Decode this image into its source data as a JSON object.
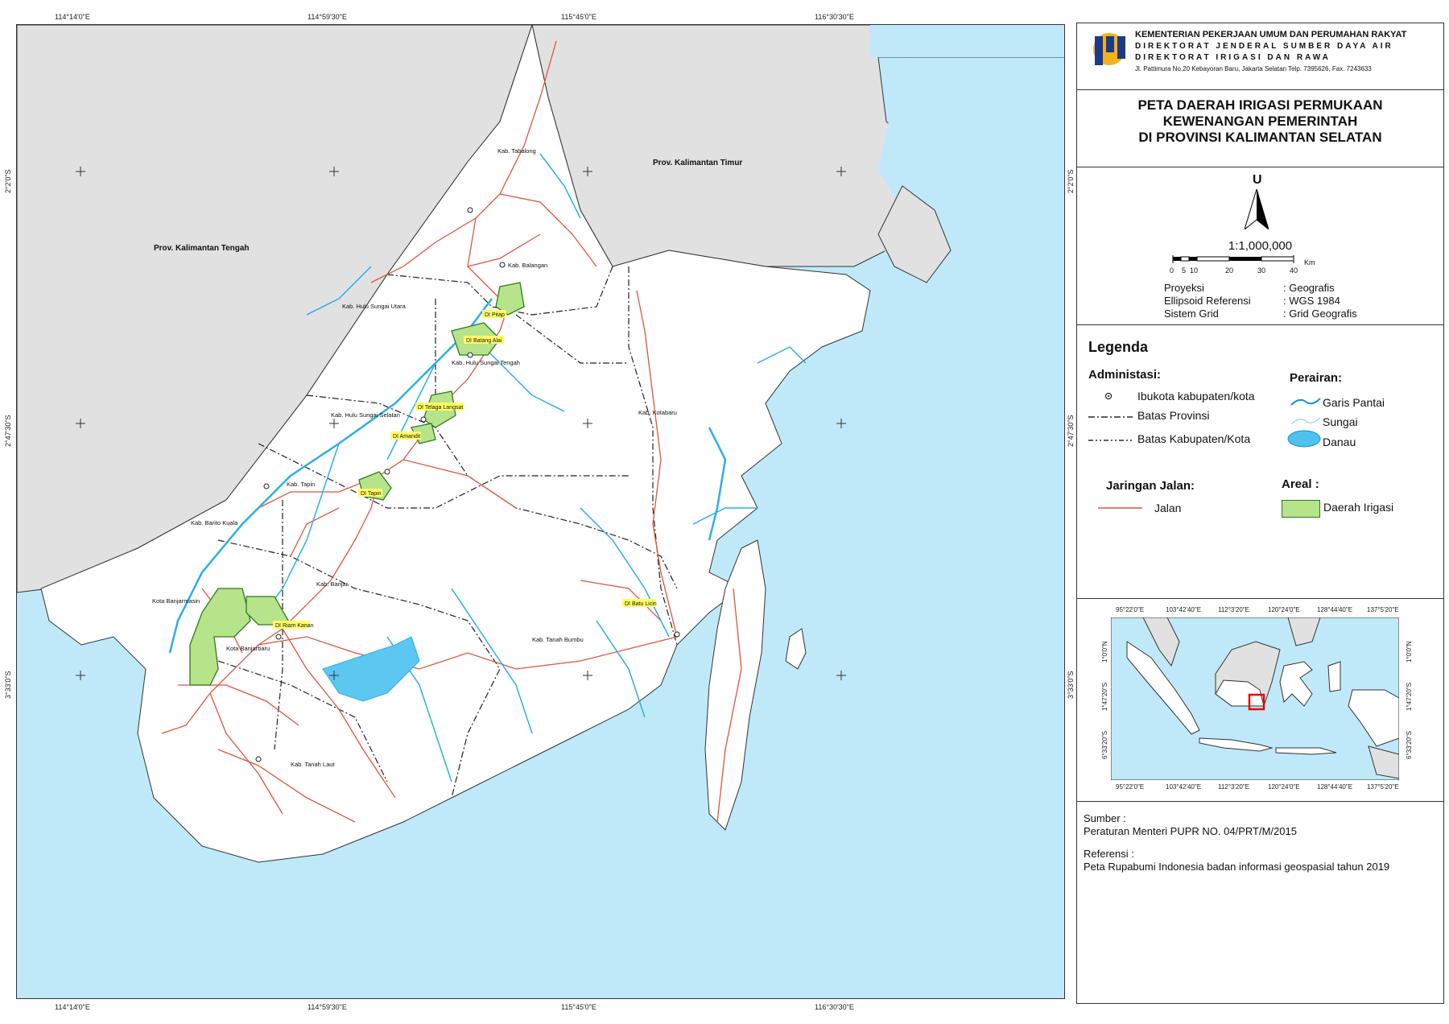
{
  "map": {
    "coords_top": [
      "114°14'0\"E",
      "114°59'30\"E",
      "115°45'0\"E",
      "116°30'30\"E"
    ],
    "coords_bottom": [
      "114°14'0\"E",
      "114°59'30\"E",
      "115°45'0\"E",
      "116°30'30\"E"
    ],
    "coords_left": [
      "2°2'0\"S",
      "2°47'30\"S",
      "3°33'0\"S"
    ],
    "coords_right": [
      "2°2'0\"S",
      "2°47'30\"S",
      "3°33'0\"S"
    ],
    "province_labels": {
      "kaltim": "Prov. Kalimantan Timur",
      "kalteng": "Prov. Kalimantan Tengah"
    },
    "regency_labels": {
      "tabalong": "Kab. Tabalong",
      "balangan": "Kab. Balangan",
      "hsu": "Kab. Hulu Sungai Utara",
      "hst": "Kab. Hulu Sungai Tengah",
      "hss": "Kab. Hulu Sungai Selatan",
      "tapin": "Kab. Tapin",
      "batola": "Kab. Barito Kuala",
      "kotabaru": "Kab. Kotabaru",
      "banjar": "Kab. Banjar",
      "banjarmasin": "Kota Banjarmasin",
      "banjarbaru": "Kota Banjarbaru",
      "tanahbumbu": "Kab. Tanah Bumbu",
      "tanahlaut": "Kab. Tanah Laut"
    },
    "irrigation_labels": {
      "pitap": "DI Pitap",
      "batang_alai": "DI Batang Alai",
      "telaga_langsat": "DI Telaga Langsat",
      "amandit": "DI Amandit",
      "tapin": "DI Tapin",
      "riam_kanan": "DI Riam Kanan",
      "batu_licin": "DI Batu Licin"
    }
  },
  "header": {
    "ministry": "KEMENTERIAN PEKERJAAN UMUM DAN PERUMAHAN RAKYAT",
    "directorate_general": "DIREKTORAT JENDERAL SUMBER DAYA AIR",
    "directorate": "DIREKTORAT IRIGASI DAN RAWA",
    "address": "Jl. Pattimura No.20 Kebayoran Baru, Jakarta Selatan Telp. 7395626, Fax. 7243633"
  },
  "title": {
    "line1": "PETA DAERAH IRIGASI PERMUKAAN",
    "line2": "KEWENANGAN PEMERINTAH",
    "line3": "DI PROVINSI KALIMANTAN SELATAN"
  },
  "north": "U",
  "scale": {
    "ratio": "1:1,000,000",
    "ticks": [
      "0",
      "5",
      "10",
      "20",
      "30",
      "40"
    ],
    "unit": "Km"
  },
  "projection": {
    "rows": [
      {
        "label": "Proyeksi",
        "value": ": Geografis"
      },
      {
        "label": "Ellipsoid Referensi",
        "value": ": WGS 1984"
      },
      {
        "label": "Sistem Grid",
        "value": ": Grid Geografis"
      }
    ]
  },
  "legend": {
    "title": "Legenda",
    "admin_title": "Administasi:",
    "admin_items": [
      "Ibukota kabupaten/kota",
      "Batas Provinsi",
      "Batas Kabupaten/Kota"
    ],
    "water_title": "Perairan:",
    "water_items": [
      "Garis Pantai",
      "Sungai",
      "Danau"
    ],
    "road_title": "Jaringan Jalan:",
    "road_items": [
      "Jalan"
    ],
    "area_title": "Areal :",
    "area_items": [
      "Daerah Irigasi"
    ]
  },
  "inset": {
    "coords_top": [
      "95°22'0\"E",
      "103°42'40\"E",
      "112°3'20\"E",
      "120°24'0\"E",
      "128°44'40\"E",
      "137°5'20\"E"
    ],
    "coords_bottom": [
      "95°22'0\"E",
      "103°42'40\"E",
      "112°3'20\"E",
      "120°24'0\"E",
      "128°44'40\"E",
      "137°5'20\"E"
    ],
    "coords_side": [
      "1°0'0\"N",
      "1°47'20\"S",
      "6°33'20\"S"
    ]
  },
  "source": {
    "heading": "Sumber :",
    "text": "Peraturan Menteri PUPR NO. 04/PRT/M/2015",
    "ref_heading": "Referensi :",
    "ref_text": "Peta Rupabumi Indonesia badan informasi geospasial tahun 2019"
  },
  "colors": {
    "sea": "#bfe9f9",
    "land_other": "#e1e1e1",
    "land_main": "#ffffff",
    "road": "#e0553c",
    "river": "#2ab0e6",
    "irrigation": "#b7e38a",
    "irrigation_border": "#2a7d1e",
    "highlight": "#ffff66"
  }
}
